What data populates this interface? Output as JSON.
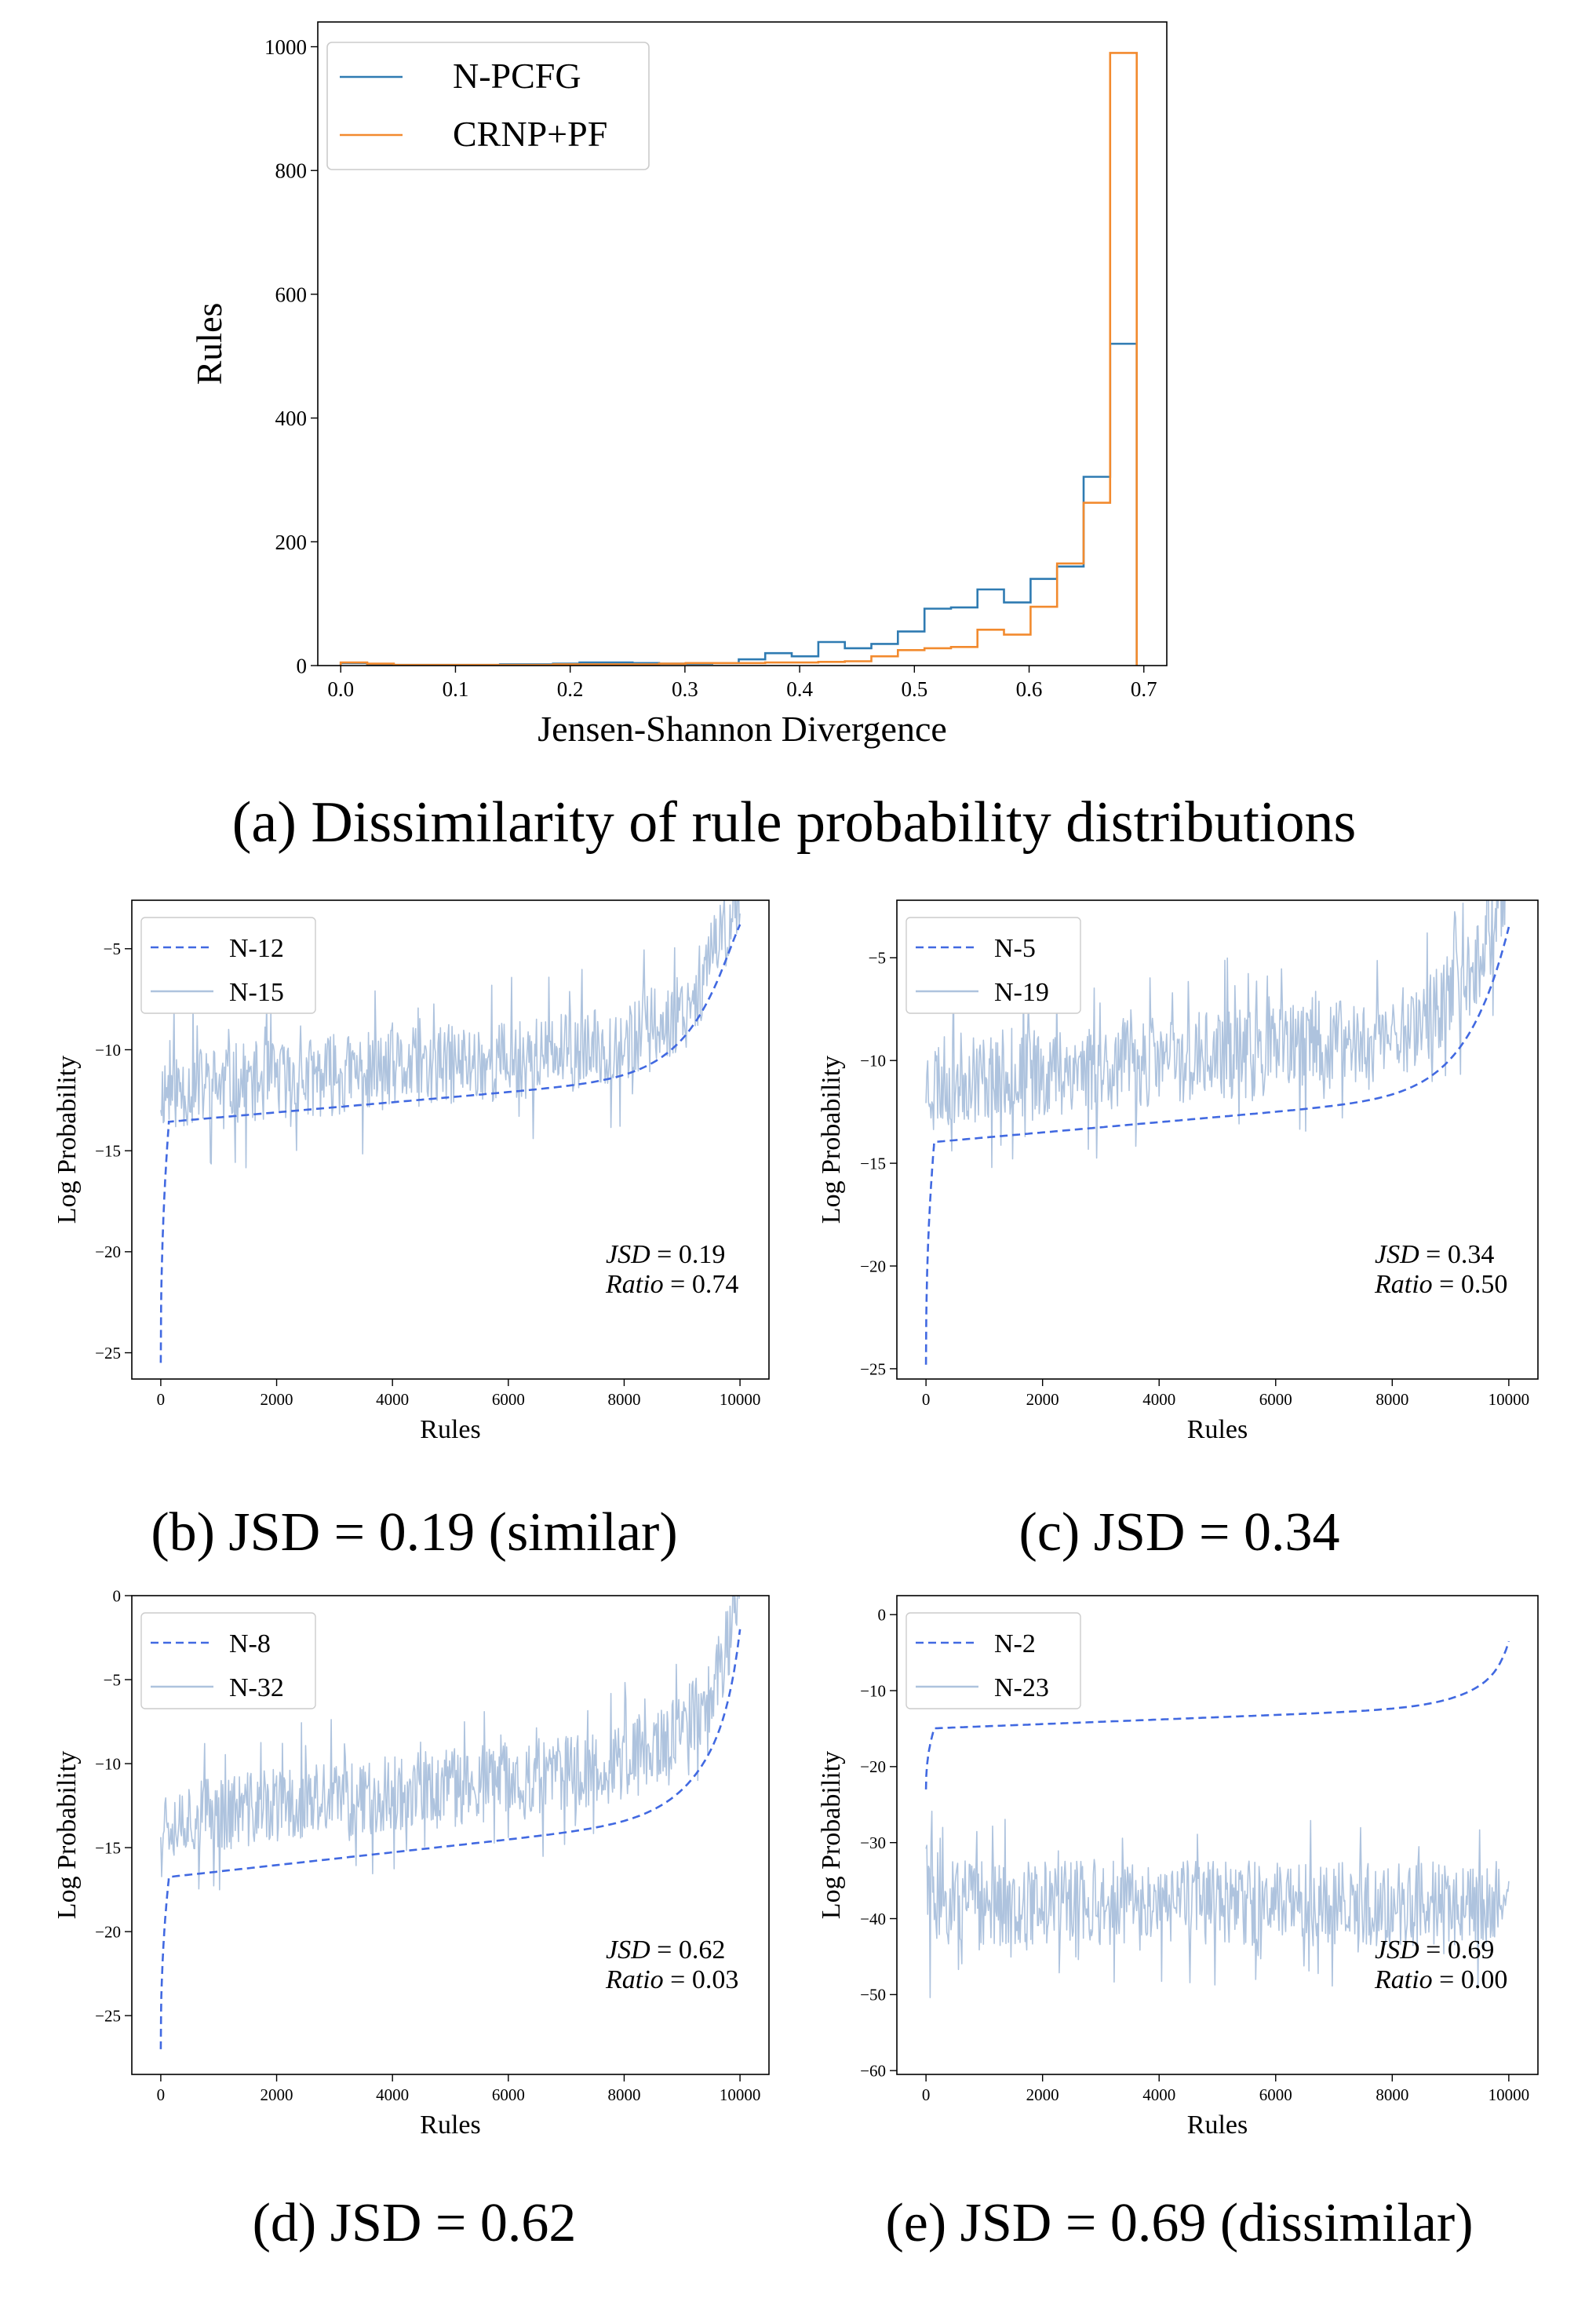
{
  "chart_data": [
    {
      "id": "a",
      "type": "histogram-step",
      "caption": "(a) Dissimilarity of rule probability distributions",
      "xlabel": "Jensen-Shannon Divergence",
      "ylabel": "Rules",
      "xlim": [
        -0.02,
        0.72
      ],
      "ylim": [
        0,
        1040
      ],
      "xticks": [
        0.0,
        0.1,
        0.2,
        0.3,
        0.4,
        0.5,
        0.6,
        0.7
      ],
      "xtick_labels": [
        "0.0",
        "0.1",
        "0.2",
        "0.3",
        "0.4",
        "0.5",
        "0.6",
        "0.7"
      ],
      "yticks": [
        0,
        200,
        400,
        600,
        800,
        1000
      ],
      "ytick_labels": [
        "0",
        "200",
        "400",
        "600",
        "800",
        "1000"
      ],
      "legend": "top-left",
      "bin_edges": [
        0.0,
        0.0231,
        0.0463,
        0.0694,
        0.0925,
        0.1156,
        0.1388,
        0.1619,
        0.185,
        0.2081,
        0.2313,
        0.2544,
        0.2775,
        0.3006,
        0.3238,
        0.3469,
        0.37,
        0.3931,
        0.4163,
        0.4394,
        0.4625,
        0.4856,
        0.5088,
        0.5319,
        0.555,
        0.5781,
        0.6013,
        0.6244,
        0.6475,
        0.6706,
        0.6938
      ],
      "series": [
        {
          "name": "N-PCFG",
          "color": "#2f7bb2",
          "values": [
            4,
            2,
            1,
            1,
            1,
            1,
            2,
            2,
            3,
            5,
            5,
            4,
            3,
            3,
            4,
            10,
            20,
            15,
            38,
            28,
            35,
            55,
            92,
            94,
            123,
            102,
            140,
            160,
            305,
            520
          ]
        },
        {
          "name": "CRNP+PF",
          "color": "#f28a2e",
          "values": [
            5,
            3,
            1,
            1,
            1,
            1,
            1,
            1,
            2,
            2,
            2,
            2,
            3,
            4,
            4,
            4,
            5,
            5,
            6,
            7,
            15,
            25,
            28,
            30,
            58,
            50,
            95,
            165,
            263,
            990
          ]
        }
      ]
    },
    {
      "id": "b",
      "type": "line",
      "caption": "(b) JSD = 0.19 (similar)",
      "xlabel": "Rules",
      "ylabel": "Log Probability",
      "xlim": [
        -500,
        10500
      ],
      "ylim": [
        -26.3,
        -2.6
      ],
      "xticks": [
        0,
        2000,
        4000,
        6000,
        8000,
        10000
      ],
      "xtick_labels": [
        "0",
        "2000",
        "4000",
        "6000",
        "8000",
        "10000"
      ],
      "yticks": [
        -25,
        -20,
        -15,
        -10,
        -5
      ],
      "ytick_labels": [
        "−25",
        "−20",
        "−15",
        "−10",
        "−5"
      ],
      "legend": "top-left",
      "series": [
        {
          "name": "N-12",
          "style": "dashed",
          "color": "#4169e1",
          "curve": {
            "start": -25.5,
            "end": -3.8,
            "base": -13.6,
            "slope": 2.5,
            "tail": 8.2
          }
        },
        {
          "name": "N-15",
          "style": "noisy",
          "color": "#aec3de",
          "offset": 1.6,
          "noise": 2.0,
          "seed": 11
        }
      ],
      "annotation": {
        "jsd_label": "JSD",
        "jsd_value": "0.19",
        "ratio_label": "Ratio",
        "ratio_value": "0.74"
      }
    },
    {
      "id": "c",
      "type": "line",
      "caption": "(c) JSD = 0.34",
      "xlabel": "Rules",
      "ylabel": "Log Probability",
      "xlim": [
        -500,
        10500
      ],
      "ylim": [
        -25.5,
        -2.2
      ],
      "xticks": [
        0,
        2000,
        4000,
        6000,
        8000,
        10000
      ],
      "xtick_labels": [
        "0",
        "2000",
        "4000",
        "6000",
        "8000",
        "10000"
      ],
      "yticks": [
        -25,
        -20,
        -15,
        -10,
        -5
      ],
      "ytick_labels": [
        "−25",
        "−20",
        "−15",
        "−10",
        "−5"
      ],
      "legend": "top-left",
      "series": [
        {
          "name": "N-5",
          "style": "dashed",
          "color": "#4169e1",
          "curve": {
            "start": -24.8,
            "end": -3.5,
            "base": -14.0,
            "slope": 2.5,
            "tail": 8.0
          }
        },
        {
          "name": "N-19",
          "style": "noisy",
          "color": "#aec3de",
          "offset": 3.0,
          "noise": 2.2,
          "seed": 23
        }
      ],
      "annotation": {
        "jsd_label": "JSD",
        "jsd_value": "0.34",
        "ratio_label": "Ratio",
        "ratio_value": "0.50"
      }
    },
    {
      "id": "d",
      "type": "line",
      "caption": "(d) JSD = 0.62",
      "xlabel": "Rules",
      "ylabel": "Log Probability",
      "xlim": [
        -500,
        10500
      ],
      "ylim": [
        -28.5,
        0
      ],
      "xticks": [
        0,
        2000,
        4000,
        6000,
        8000,
        10000
      ],
      "xtick_labels": [
        "0",
        "2000",
        "4000",
        "6000",
        "8000",
        "10000"
      ],
      "yticks": [
        -25,
        -20,
        -15,
        -10,
        -5,
        0
      ],
      "ytick_labels": [
        "−25",
        "−20",
        "−15",
        "−10",
        "−5",
        "0"
      ],
      "legend": "top-left",
      "series": [
        {
          "name": "N-8",
          "style": "dashed",
          "color": "#4169e1",
          "curve": {
            "start": -27.0,
            "end": -2.0,
            "base": -16.8,
            "slope": 3.8,
            "tail": 8.0
          }
        },
        {
          "name": "N-32",
          "style": "noisy",
          "color": "#aec3de",
          "offset": 3.5,
          "noise": 2.3,
          "seed": 37
        }
      ],
      "annotation": {
        "jsd_label": "JSD",
        "jsd_value": "0.62",
        "ratio_label": "Ratio",
        "ratio_value": "0.03"
      }
    },
    {
      "id": "e",
      "type": "line",
      "caption": "(e) JSD = 0.69 (dissimilar)",
      "xlabel": "Rules",
      "ylabel": "Log Probability",
      "xlim": [
        -500,
        10500
      ],
      "ylim": [
        -60.5,
        2.5
      ],
      "xticks": [
        0,
        2000,
        4000,
        6000,
        8000,
        10000
      ],
      "xtick_labels": [
        "0",
        "2000",
        "4000",
        "6000",
        "8000",
        "10000"
      ],
      "yticks": [
        -60,
        -50,
        -40,
        -30,
        -20,
        -10,
        0
      ],
      "ytick_labels": [
        "−60",
        "−50",
        "−40",
        "−30",
        "−20",
        "−10",
        "0"
      ],
      "legend": "top-left",
      "series": [
        {
          "name": "N-2",
          "style": "dashed",
          "color": "#4169e1",
          "curve": {
            "start": -23.0,
            "end": -3.5,
            "base": -15.0,
            "slope": 3.0,
            "tail": 5.5
          }
        },
        {
          "name": "N-23",
          "style": "band",
          "color": "#aec3de",
          "center": -38.0,
          "noise": 4.0,
          "seed": 51
        }
      ],
      "annotation": {
        "jsd_label": "JSD",
        "jsd_value": "0.69",
        "ratio_label": "Ratio",
        "ratio_value": "0.00"
      }
    }
  ]
}
